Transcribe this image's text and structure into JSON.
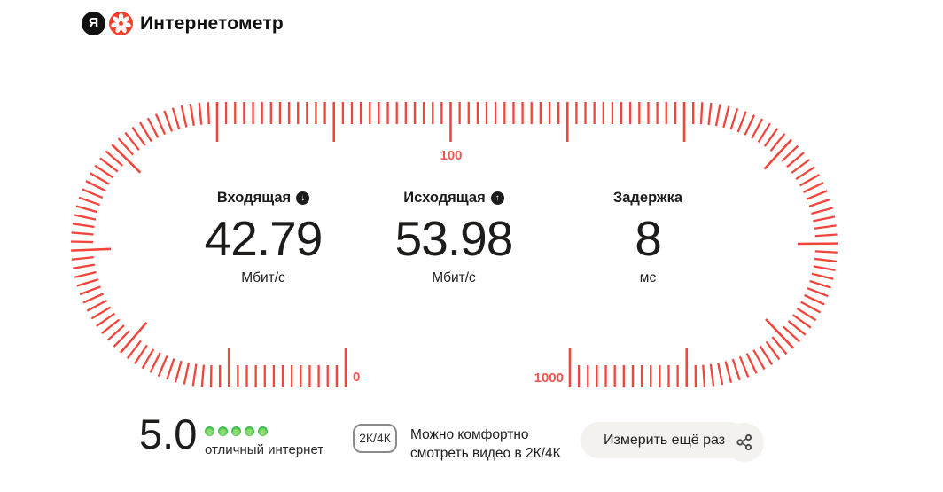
{
  "header": {
    "logo_letter": "Я",
    "logo_flower_color": "#f5402c",
    "brand": "Интернетометр"
  },
  "gauge": {
    "tick_color": "#f1453c",
    "label_color": "#f2564d",
    "scale_labels": {
      "start": "0",
      "middle": "100",
      "end": "1000"
    },
    "metrics": [
      {
        "label": "Входящая",
        "icon": "download-icon",
        "icon_glyph": "↓",
        "value": "42.79",
        "unit": "Мбит/с"
      },
      {
        "label": "Исходящая",
        "icon": "upload-icon",
        "icon_glyph": "↑",
        "value": "53.98",
        "unit": "Мбит/с"
      },
      {
        "label": "Задержка",
        "icon": null,
        "icon_glyph": "",
        "value": "8",
        "unit": "мс"
      }
    ]
  },
  "footer": {
    "rating": {
      "score": "5.0",
      "dots": 5,
      "dot_color": "#3fbf4a",
      "caption": "отличный интернет"
    },
    "quality": {
      "badge": "2К/4К",
      "line1": "Можно комфортно",
      "line2": "смотреть видео в 2К/4К"
    },
    "actions": {
      "measure_again": "Измерить ещё раз",
      "share_icon": "share"
    }
  }
}
